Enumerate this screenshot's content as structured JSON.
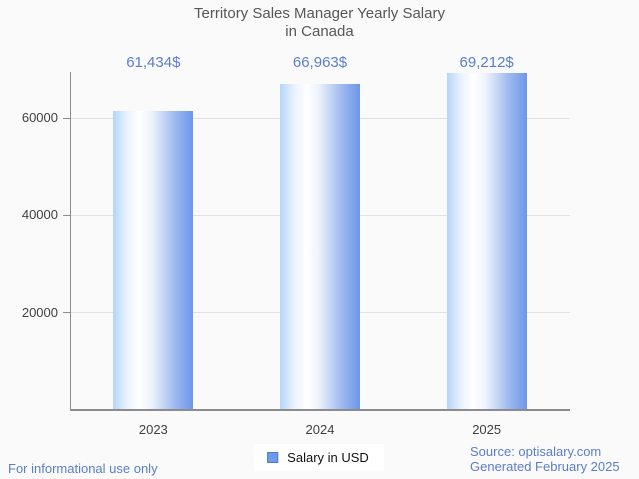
{
  "title": {
    "line1": "Territory Sales Manager Yearly Salary",
    "line2": "in Canada"
  },
  "chart_data": {
    "type": "bar",
    "title": "Territory Sales Manager Yearly Salary in Canada",
    "categories": [
      "2023",
      "2024",
      "2025"
    ],
    "values": [
      61434,
      66963,
      69212
    ],
    "value_labels": [
      "61,434$",
      "66,963$",
      "69,212$"
    ],
    "series": [
      {
        "name": "Salary in USD",
        "values": [
          61434,
          66963,
          69212
        ]
      }
    ],
    "xlabel": "",
    "ylabel": "",
    "yticks": [
      20000,
      40000,
      60000
    ],
    "ytick_labels": [
      "20000",
      "40000",
      "60000"
    ],
    "ylim": [
      0,
      69460
    ],
    "grid": true,
    "legend_position": "bottom"
  },
  "legend": {
    "label": "Salary in USD",
    "swatch_color": "#6d9bea"
  },
  "footer": {
    "disclaimer": "For informational use only",
    "source": "Source: optisalary.com",
    "generated": "Generated February 2025"
  },
  "colors": {
    "background": "#fafafa",
    "title": "#575757",
    "annotation_blue": "#5b7ecb",
    "axis": "#8c8c8c",
    "gridline": "#e2e2e2",
    "tick_label": "#3f3f3f",
    "bar_gradient_left": "#b5d5f8",
    "bar_gradient_mid": "#ffffff",
    "bar_gradient_right": "#6d96e9",
    "legend_background": "#ffffff"
  }
}
